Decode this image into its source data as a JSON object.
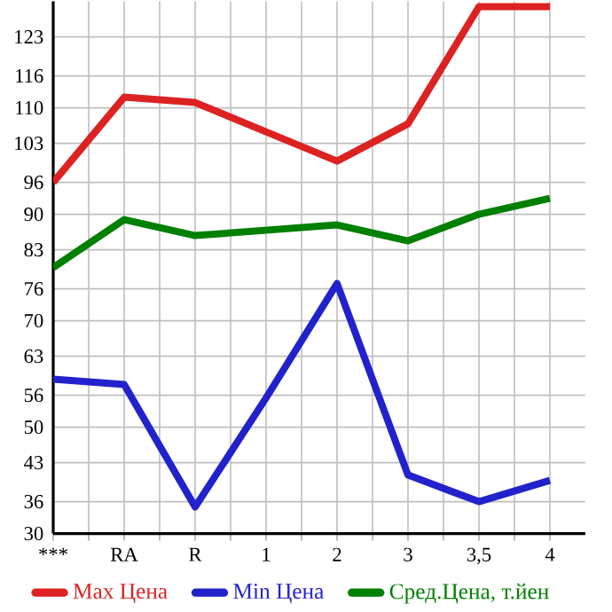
{
  "chart_data": {
    "type": "line",
    "categories": [
      "***",
      "RA",
      "R",
      "1",
      "2",
      "3",
      "3,5",
      "4"
    ],
    "series": [
      {
        "name": "Max Цена",
        "color": "#dd2222",
        "values": [
          96,
          112,
          111,
          105.5,
          100,
          107,
          129,
          129
        ]
      },
      {
        "name": "Min Цена",
        "color": "#2222cc",
        "values": [
          59,
          58,
          35,
          55.5,
          77,
          41,
          36,
          40
        ]
      },
      {
        "name": "Сред.Цена, т.йен",
        "color": "#008000",
        "values": [
          80,
          89,
          86,
          87,
          88,
          85,
          90,
          93
        ]
      }
    ],
    "ylim": [
      30,
      130
    ],
    "yticks": [
      {
        "value": 30,
        "label": "30"
      },
      {
        "value": 36,
        "label": "36"
      },
      {
        "value": 43.33,
        "label": "43"
      },
      {
        "value": 50,
        "label": "50"
      },
      {
        "value": 56,
        "label": "56"
      },
      {
        "value": 63.33,
        "label": "63"
      },
      {
        "value": 70,
        "label": "70"
      },
      {
        "value": 76,
        "label": "76"
      },
      {
        "value": 83.33,
        "label": "83"
      },
      {
        "value": 90,
        "label": "90"
      },
      {
        "value": 96,
        "label": "96"
      },
      {
        "value": 103.33,
        "label": "103"
      },
      {
        "value": 110,
        "label": "110"
      },
      {
        "value": 116,
        "label": "116"
      },
      {
        "value": 123.33,
        "label": "123"
      }
    ],
    "grid": true,
    "legend": "bottom",
    "marker": "none",
    "line_style": "solid"
  }
}
